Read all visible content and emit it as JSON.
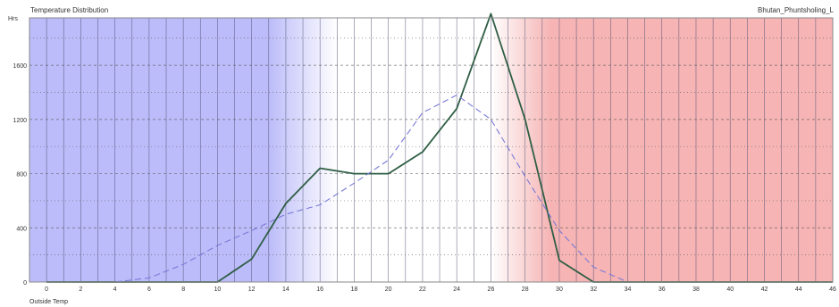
{
  "chart_data": {
    "type": "line",
    "title": "Temperature Distribution",
    "location_label": "Bhutan_Phuntsholing_L",
    "xlabel": "Outside Temp",
    "ylabel": "Hrs",
    "xlim": [
      -1,
      46
    ],
    "ylim": [
      0,
      1950
    ],
    "x_ticks": [
      0,
      2,
      4,
      6,
      8,
      10,
      12,
      14,
      16,
      18,
      20,
      22,
      24,
      26,
      28,
      30,
      32,
      34,
      36,
      38,
      40,
      42,
      44,
      46
    ],
    "y_ticks": [
      0,
      400,
      800,
      1200,
      1600
    ],
    "grid": true,
    "background_bands": {
      "cold_color": "#bcbcfa",
      "neutral_color": "#ffffff",
      "hot_color": "#f6b4b4",
      "cold_edge": 13,
      "neutral_start": 17,
      "neutral_end": 26,
      "hot_edge": 29.5
    },
    "series": [
      {
        "style": "solid",
        "color": "#2f5e44",
        "x": [
          0,
          2,
          4,
          6,
          8,
          10,
          12,
          14,
          16,
          18,
          20,
          22,
          24,
          26,
          28,
          30,
          32,
          34,
          36,
          38,
          40,
          42,
          44,
          46
        ],
        "y": [
          0,
          0,
          0,
          0,
          0,
          0,
          170,
          580,
          840,
          800,
          800,
          960,
          1280,
          1980,
          1200,
          160,
          0,
          0,
          0,
          0,
          0,
          0,
          0,
          0
        ]
      },
      {
        "style": "dashed",
        "color": "#7a7ad8",
        "x": [
          0,
          2,
          4,
          6,
          8,
          10,
          12,
          14,
          16,
          18,
          20,
          22,
          24,
          26,
          28,
          30,
          32,
          34,
          36,
          38,
          40,
          42,
          44,
          46
        ],
        "y": [
          0,
          0,
          0,
          30,
          130,
          270,
          380,
          500,
          570,
          730,
          900,
          1250,
          1380,
          1200,
          780,
          380,
          110,
          0,
          0,
          0,
          0,
          0,
          0,
          0
        ]
      }
    ]
  }
}
